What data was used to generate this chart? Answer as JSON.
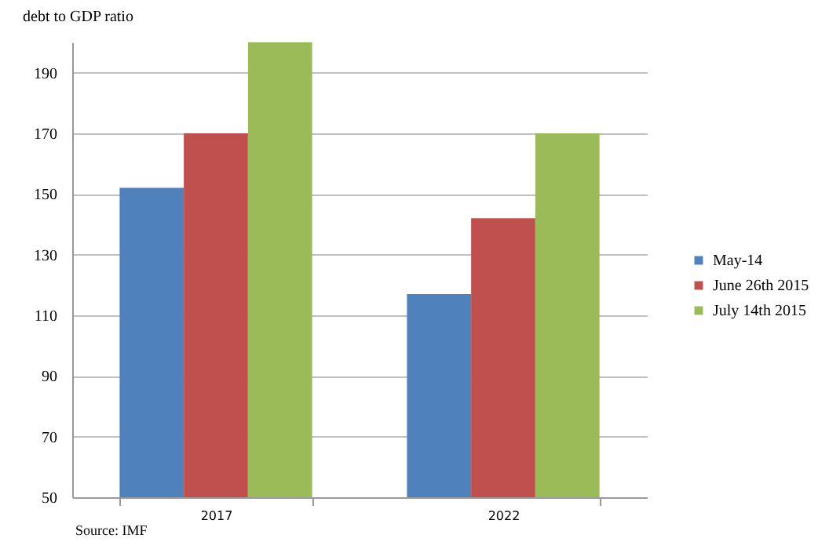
{
  "chart_data": {
    "type": "bar",
    "ylabel": "debt to GDP ratio",
    "categories": [
      "2017",
      "2022"
    ],
    "series": [
      {
        "name": "May-14",
        "color": "#4f81bd",
        "values": [
          152,
          117
        ]
      },
      {
        "name": "June 26th  2015",
        "color": "#c0504d",
        "values": [
          170,
          142
        ]
      },
      {
        "name": "July 14th 2015",
        "color": "#9bbb59",
        "values": [
          200,
          170
        ]
      }
    ],
    "ylim": [
      50,
      200
    ],
    "yticks": [
      50,
      70,
      90,
      110,
      130,
      150,
      170,
      190
    ],
    "grid": "y",
    "legend": "right",
    "annotations": [
      "Source: IMF"
    ]
  }
}
